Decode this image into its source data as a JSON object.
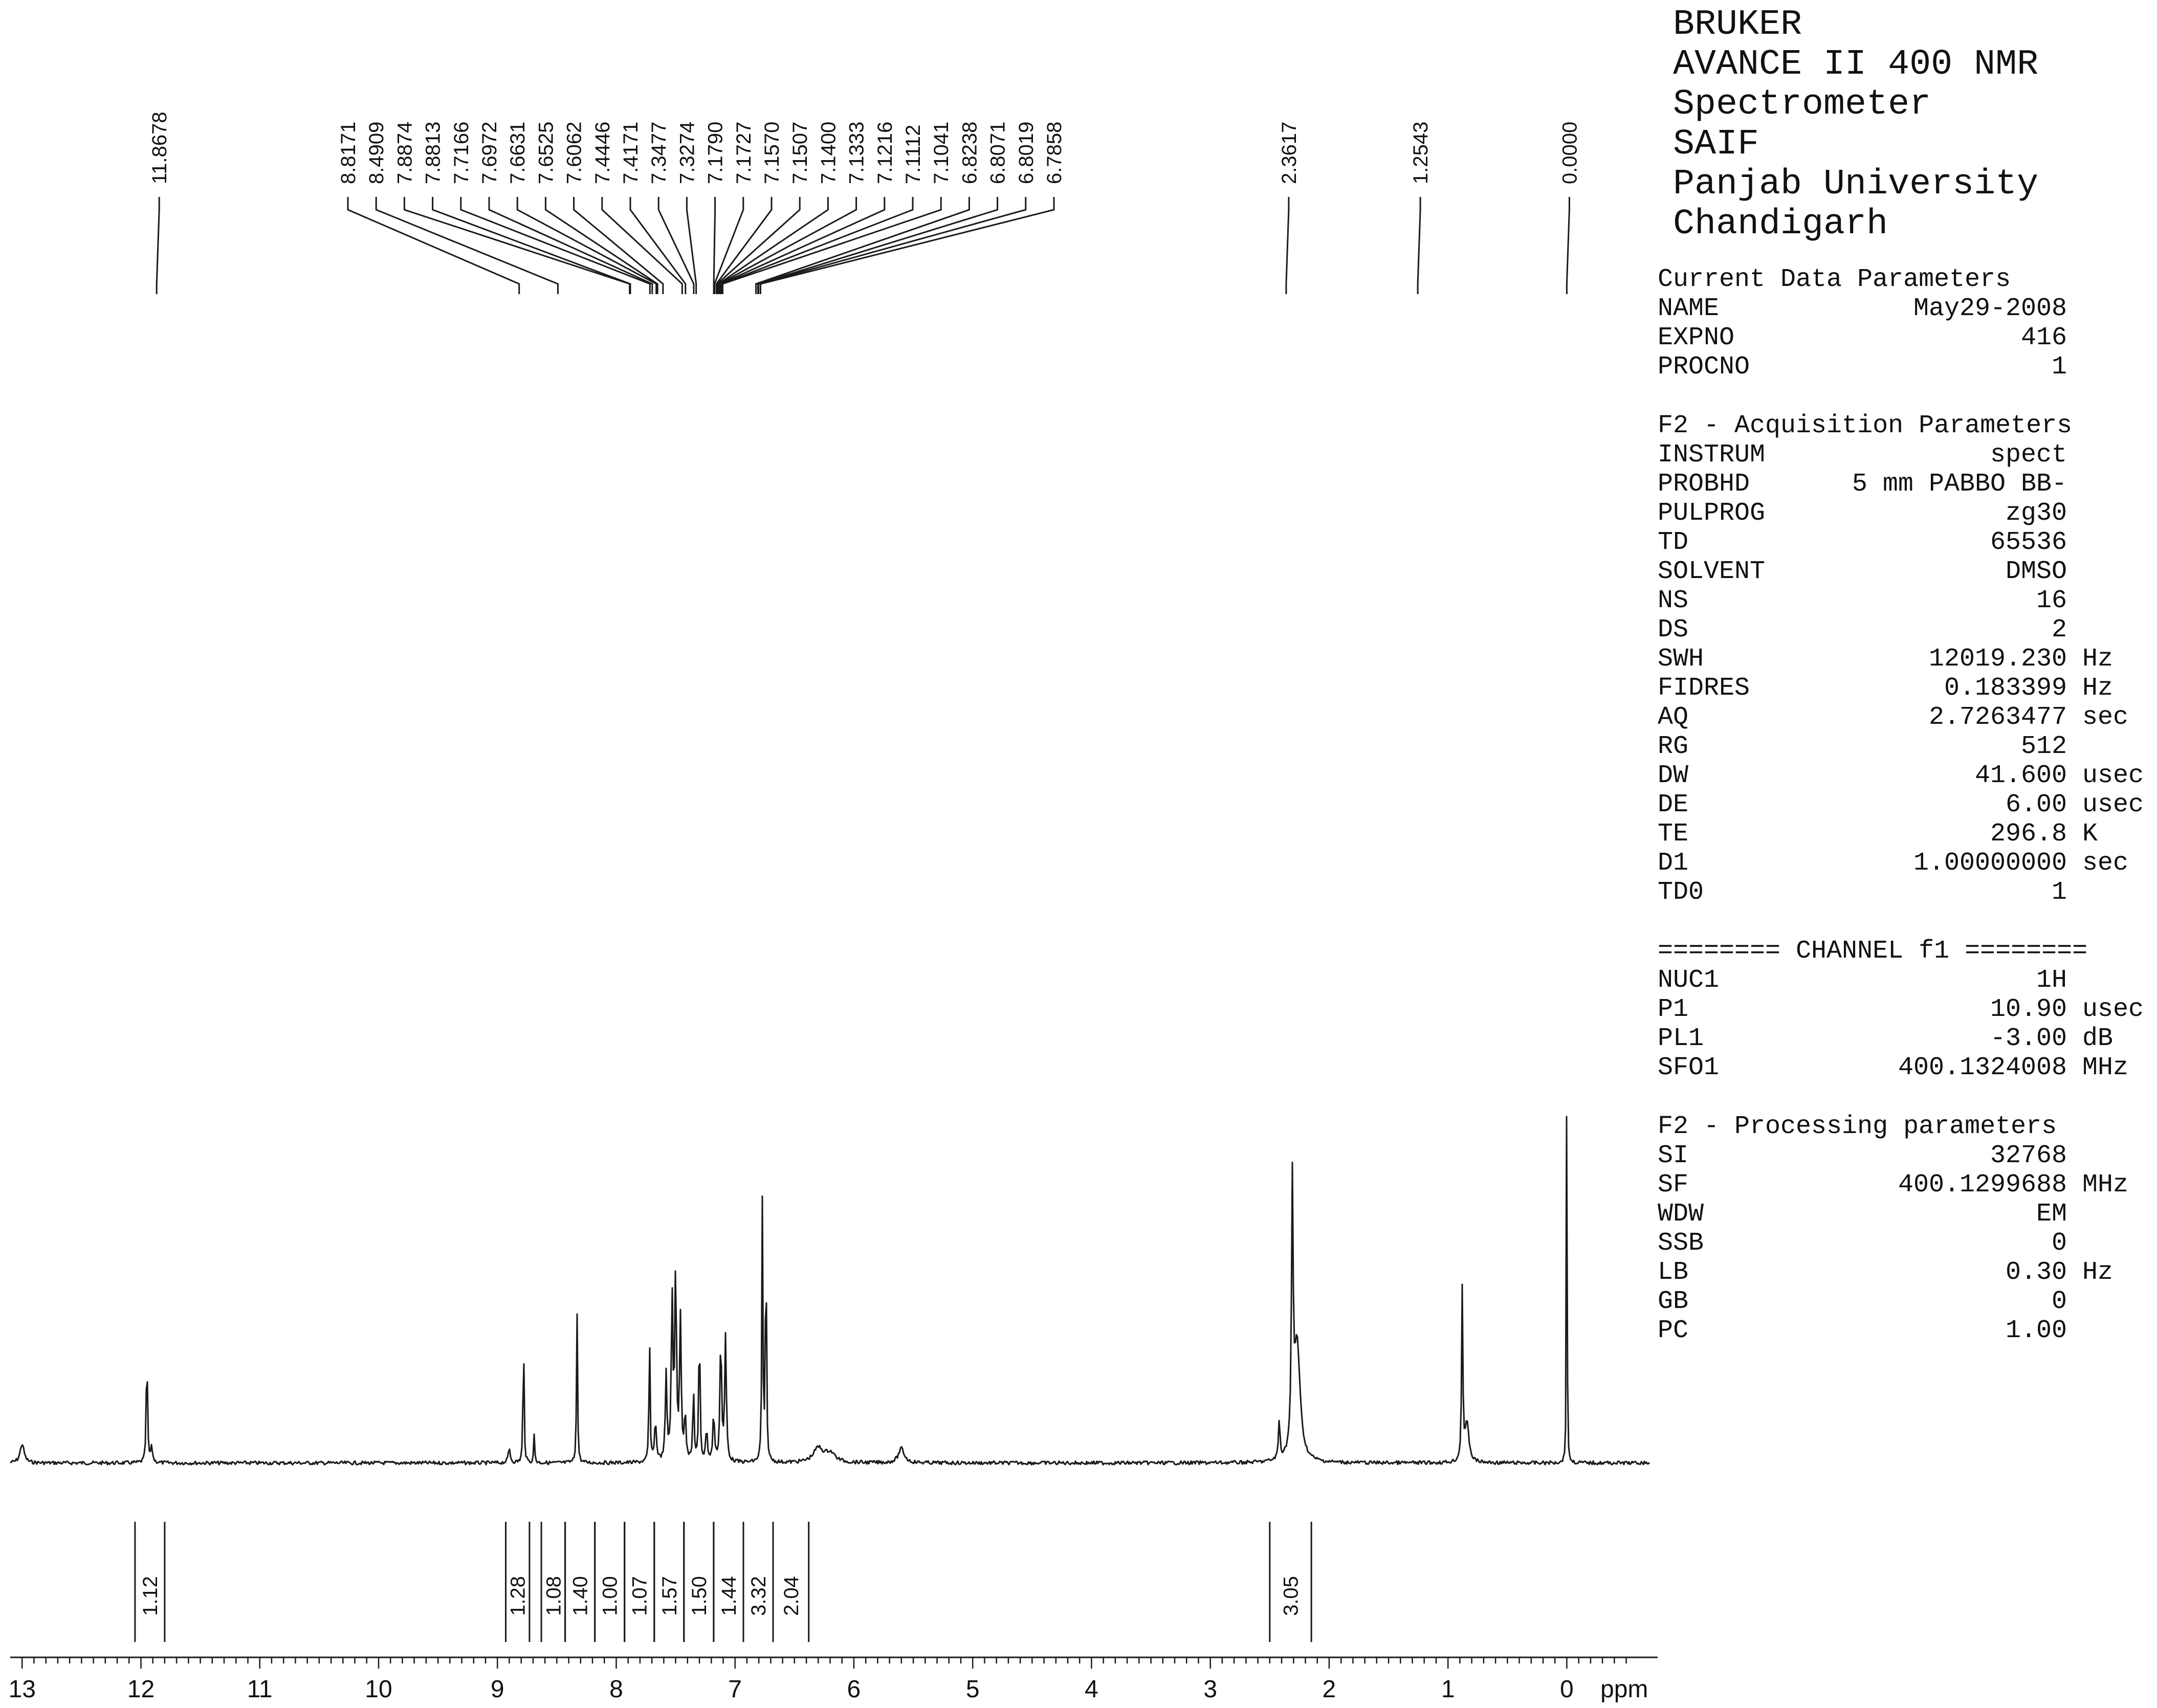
{
  "instrument_lines": [
    "BRUKER",
    "AVANCE II 400 NMR",
    "Spectrometer",
    "SAIF",
    "Panjab University",
    "Chandigarh"
  ],
  "param_sections": [
    {
      "title": "Current Data Parameters",
      "rows": [
        {
          "name": "NAME",
          "value": "May29-2008",
          "unit": ""
        },
        {
          "name": "EXPNO",
          "value": "416",
          "unit": ""
        },
        {
          "name": "PROCNO",
          "value": "1",
          "unit": ""
        }
      ]
    },
    {
      "title": "F2 - Acquisition Parameters",
      "rows": [
        {
          "name": "INSTRUM",
          "value": "spect",
          "unit": ""
        },
        {
          "name": "PROBHD",
          "value": "5 mm PABBO BB-",
          "unit": ""
        },
        {
          "name": "PULPROG",
          "value": "zg30",
          "unit": ""
        },
        {
          "name": "TD",
          "value": "65536",
          "unit": ""
        },
        {
          "name": "SOLVENT",
          "value": "DMSO",
          "unit": ""
        },
        {
          "name": "NS",
          "value": "16",
          "unit": ""
        },
        {
          "name": "DS",
          "value": "2",
          "unit": ""
        },
        {
          "name": "SWH",
          "value": "12019.230",
          "unit": "Hz"
        },
        {
          "name": "FIDRES",
          "value": "0.183399",
          "unit": "Hz"
        },
        {
          "name": "AQ",
          "value": "2.7263477",
          "unit": "sec"
        },
        {
          "name": "RG",
          "value": "512",
          "unit": ""
        },
        {
          "name": "DW",
          "value": "41.600",
          "unit": "usec"
        },
        {
          "name": "DE",
          "value": "6.00",
          "unit": "usec"
        },
        {
          "name": "TE",
          "value": "296.8",
          "unit": "K"
        },
        {
          "name": "D1",
          "value": "1.00000000",
          "unit": "sec"
        },
        {
          "name": "TD0",
          "value": "1",
          "unit": ""
        }
      ]
    },
    {
      "title": "======== CHANNEL f1 ========",
      "rows": [
        {
          "name": "NUC1",
          "value": "1H",
          "unit": ""
        },
        {
          "name": "P1",
          "value": "10.90",
          "unit": "usec"
        },
        {
          "name": "PL1",
          "value": "-3.00",
          "unit": "dB"
        },
        {
          "name": "SFO1",
          "value": "400.1324008",
          "unit": "MHz"
        }
      ]
    },
    {
      "title": "F2 - Processing parameters",
      "rows": [
        {
          "name": "SI",
          "value": "32768",
          "unit": ""
        },
        {
          "name": "SF",
          "value": "400.1299688",
          "unit": "MHz"
        },
        {
          "name": "WDW",
          "value": "EM",
          "unit": ""
        },
        {
          "name": "SSB",
          "value": "0",
          "unit": ""
        },
        {
          "name": "LB",
          "value": "0.30",
          "unit": "Hz"
        },
        {
          "name": "GB",
          "value": "0",
          "unit": ""
        },
        {
          "name": "PC",
          "value": "1.00",
          "unit": ""
        }
      ]
    }
  ],
  "chart_data": {
    "type": "line",
    "xlabel": "ppm",
    "xlim": [
      13.1,
      -0.7
    ],
    "x_reversed": true,
    "x_ticks": [
      13,
      12,
      11,
      10,
      9,
      8,
      7,
      6,
      5,
      4,
      3,
      2,
      1,
      0
    ],
    "peak_labels": [
      "11.8678",
      "8.8171",
      "8.4909",
      "7.8874",
      "7.8813",
      "7.7166",
      "7.6972",
      "7.6631",
      "7.6525",
      "7.6062",
      "7.4446",
      "7.4171",
      "7.3477",
      "7.3274",
      "7.1790",
      "7.1727",
      "7.1570",
      "7.1507",
      "7.1400",
      "7.1333",
      "7.1216",
      "7.1112",
      "7.1041",
      "6.8238",
      "6.8071",
      "6.8019",
      "6.7858",
      "2.3617",
      "1.2543",
      "0.0000"
    ],
    "peaks": [
      {
        "ppm": 13.0,
        "height": 0.04,
        "width": 0.02
      },
      {
        "ppm": 11.95,
        "height": 0.24,
        "width": 0.006
      },
      {
        "ppm": 11.91,
        "height": 0.03,
        "width": 0.01
      },
      {
        "ppm": 8.9,
        "height": 0.03,
        "width": 0.01
      },
      {
        "ppm": 8.78,
        "height": 0.28,
        "width": 0.005
      },
      {
        "ppm": 8.69,
        "height": 0.06,
        "width": 0.005
      },
      {
        "ppm": 8.33,
        "height": 0.32,
        "width": 0.005
      },
      {
        "ppm": 7.72,
        "height": 0.28,
        "width": 0.005
      },
      {
        "ppm": 7.67,
        "height": 0.08,
        "width": 0.01
      },
      {
        "ppm": 7.58,
        "height": 0.18,
        "width": 0.008
      },
      {
        "ppm": 7.53,
        "height": 0.34,
        "width": 0.008
      },
      {
        "ppm": 7.5,
        "height": 0.4,
        "width": 0.008
      },
      {
        "ppm": 7.46,
        "height": 0.3,
        "width": 0.008
      },
      {
        "ppm": 7.42,
        "height": 0.1,
        "width": 0.008
      },
      {
        "ppm": 7.35,
        "height": 0.16,
        "width": 0.006
      },
      {
        "ppm": 7.3,
        "height": 0.3,
        "width": 0.006
      },
      {
        "ppm": 7.24,
        "height": 0.07,
        "width": 0.008
      },
      {
        "ppm": 7.18,
        "height": 0.1,
        "width": 0.008
      },
      {
        "ppm": 7.12,
        "height": 0.26,
        "width": 0.008
      },
      {
        "ppm": 7.08,
        "height": 0.26,
        "width": 0.008
      },
      {
        "ppm": 6.77,
        "height": 0.55,
        "width": 0.005
      },
      {
        "ppm": 6.74,
        "height": 0.52,
        "width": 0.005
      },
      {
        "ppm": 6.3,
        "height": 0.03,
        "width": 0.05
      },
      {
        "ppm": 6.2,
        "height": 0.02,
        "width": 0.05
      },
      {
        "ppm": 5.6,
        "height": 0.03,
        "width": 0.03
      },
      {
        "ppm": 2.42,
        "height": 0.08,
        "width": 0.008
      },
      {
        "ppm": 2.31,
        "height": 0.54,
        "width": 0.008
      },
      {
        "ppm": 2.27,
        "height": 0.25,
        "width": 0.03
      },
      {
        "ppm": 0.88,
        "height": 0.36,
        "width": 0.006
      },
      {
        "ppm": 0.84,
        "height": 0.08,
        "width": 0.02
      },
      {
        "ppm": 0.0,
        "height": 1.0,
        "width": 0.003
      }
    ],
    "integrals": [
      {
        "value": "1.12",
        "from": 12.05,
        "to": 11.8
      },
      {
        "value": "1.28",
        "from": 8.93,
        "to": 8.73
      },
      {
        "value": "1.08",
        "from": 8.63,
        "to": 8.43
      },
      {
        "value": "1.40",
        "from": 8.43,
        "to": 8.18
      },
      {
        "value": "1.00",
        "from": 8.18,
        "to": 7.93
      },
      {
        "value": "1.07",
        "from": 7.93,
        "to": 7.68
      },
      {
        "value": "1.57",
        "from": 7.68,
        "to": 7.43
      },
      {
        "value": "1.50",
        "from": 7.43,
        "to": 7.18
      },
      {
        "value": "1.44",
        "from": 7.18,
        "to": 6.93
      },
      {
        "value": "3.32",
        "from": 6.93,
        "to": 6.68
      },
      {
        "value": "2.04",
        "from": 6.68,
        "to": 6.38
      },
      {
        "value": "3.05",
        "from": 2.5,
        "to": 2.15
      }
    ]
  }
}
